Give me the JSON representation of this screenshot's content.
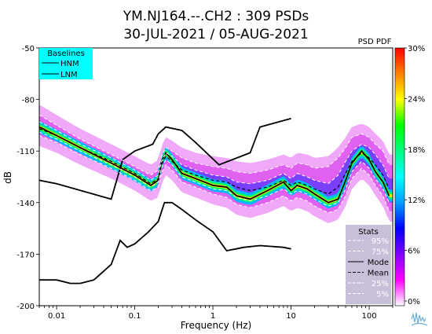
{
  "chart_data": {
    "type": "line",
    "title": "YM.NJ164.--.CH2 : 309 PSDs",
    "subtitle": "30-JUL-2021 / 05-AUG-2021",
    "xlabel": "Frequency (Hz)",
    "ylabel": "dB",
    "x_scale": "log",
    "xlim": [
      0.006,
      200
    ],
    "ylim": [
      -200,
      -50
    ],
    "x_ticks": [
      {
        "value": 0.01,
        "label": "0.01"
      },
      {
        "value": 0.1,
        "label": "0.1"
      },
      {
        "value": 1,
        "label": "1"
      },
      {
        "value": 10,
        "label": "10"
      },
      {
        "value": 100,
        "label": "100"
      }
    ],
    "y_ticks": [
      {
        "value": -50,
        "label": "-50"
      },
      {
        "value": -80,
        "label": "-80"
      },
      {
        "value": -110,
        "label": "-110"
      },
      {
        "value": -140,
        "label": "-140"
      },
      {
        "value": -170,
        "label": "-170"
      },
      {
        "value": -200,
        "label": "-200"
      }
    ],
    "grid": false,
    "baselines_legend": {
      "title": "Baselines",
      "position": "top-left",
      "items": [
        "HNM",
        "LNM"
      ],
      "background": "#00ffff"
    },
    "stats_legend": {
      "title": "Stats",
      "position": "bottom-right",
      "background": "#c8c0d8",
      "items": [
        {
          "label": "95%",
          "style": "dashed-white"
        },
        {
          "label": "75%",
          "style": "dashed-white"
        },
        {
          "label": "Mode",
          "style": "solid-black"
        },
        {
          "label": "Mean",
          "style": "dashed-black"
        },
        {
          "label": "25%",
          "style": "dashed-white"
        },
        {
          "label": "5%",
          "style": "dashed-white"
        }
      ]
    },
    "colorbar": {
      "title": "PSD PDF",
      "ticks": [
        "0%",
        "6%",
        "12%",
        "18%",
        "24%",
        "30%"
      ],
      "stops": [
        "#ffffff",
        "#ff00ff",
        "#8000ff",
        "#0000ff",
        "#00a0ff",
        "#00ffff",
        "#00ff80",
        "#00ff00",
        "#ffff00",
        "#ff8000",
        "#ff0000"
      ]
    },
    "series": [
      {
        "name": "HNM",
        "style": "solid-black",
        "points": [
          [
            0.006,
            -127
          ],
          [
            0.01,
            -129
          ],
          [
            0.05,
            -138
          ],
          [
            0.07,
            -115
          ],
          [
            0.1,
            -110
          ],
          [
            0.17,
            -106
          ],
          [
            0.2,
            -100
          ],
          [
            0.25,
            -96
          ],
          [
            0.4,
            -98
          ],
          [
            0.6,
            -105
          ],
          [
            1.2,
            -118
          ],
          [
            3,
            -111
          ],
          [
            4,
            -96
          ],
          [
            10,
            -91
          ]
        ]
      },
      {
        "name": "LNM",
        "style": "solid-black",
        "points": [
          [
            0.006,
            -185
          ],
          [
            0.01,
            -185
          ],
          [
            0.015,
            -187
          ],
          [
            0.02,
            -187
          ],
          [
            0.03,
            -185
          ],
          [
            0.05,
            -176
          ],
          [
            0.065,
            -162
          ],
          [
            0.08,
            -166
          ],
          [
            0.1,
            -164
          ],
          [
            0.15,
            -157
          ],
          [
            0.2,
            -151
          ],
          [
            0.24,
            -140
          ],
          [
            0.3,
            -140
          ],
          [
            0.4,
            -144
          ],
          [
            0.6,
            -150
          ],
          [
            1,
            -157
          ],
          [
            1.5,
            -168
          ],
          [
            2.5,
            -166
          ],
          [
            4,
            -165
          ],
          [
            8,
            -166
          ],
          [
            10,
            -167
          ]
        ]
      },
      {
        "name": "Mode",
        "style": "solid-black",
        "points": [
          [
            0.006,
            -96
          ],
          [
            0.01,
            -101
          ],
          [
            0.02,
            -108
          ],
          [
            0.05,
            -117
          ],
          [
            0.1,
            -124
          ],
          [
            0.16,
            -130
          ],
          [
            0.2,
            -127
          ],
          [
            0.22,
            -116
          ],
          [
            0.25,
            -111
          ],
          [
            0.3,
            -115
          ],
          [
            0.4,
            -123
          ],
          [
            0.6,
            -126
          ],
          [
            1,
            -130
          ],
          [
            1.5,
            -131
          ],
          [
            2,
            -136
          ],
          [
            3,
            -138
          ],
          [
            5,
            -133
          ],
          [
            8,
            -128
          ],
          [
            10,
            -133
          ],
          [
            12,
            -130
          ],
          [
            16,
            -132
          ],
          [
            20,
            -135
          ],
          [
            30,
            -140
          ],
          [
            40,
            -138
          ],
          [
            50,
            -127
          ],
          [
            60,
            -117
          ],
          [
            80,
            -110
          ],
          [
            100,
            -115
          ],
          [
            120,
            -122
          ],
          [
            150,
            -128
          ],
          [
            180,
            -136
          ]
        ]
      },
      {
        "name": "Mean",
        "style": "dashed-black",
        "points": [
          [
            0.006,
            -97
          ],
          [
            0.01,
            -101
          ],
          [
            0.02,
            -108
          ],
          [
            0.05,
            -116
          ],
          [
            0.1,
            -123
          ],
          [
            0.16,
            -129
          ],
          [
            0.2,
            -126
          ],
          [
            0.22,
            -118
          ],
          [
            0.25,
            -113
          ],
          [
            0.3,
            -116
          ],
          [
            0.4,
            -121
          ],
          [
            0.6,
            -124
          ],
          [
            1,
            -127
          ],
          [
            1.5,
            -128
          ],
          [
            2,
            -131
          ],
          [
            3,
            -133
          ],
          [
            5,
            -131
          ],
          [
            8,
            -127
          ],
          [
            10,
            -130
          ],
          [
            12,
            -128
          ],
          [
            16,
            -130
          ],
          [
            20,
            -132
          ],
          [
            30,
            -135
          ],
          [
            40,
            -131
          ],
          [
            50,
            -123
          ],
          [
            60,
            -116
          ],
          [
            80,
            -111
          ],
          [
            100,
            -114
          ],
          [
            120,
            -118
          ],
          [
            150,
            -124
          ],
          [
            180,
            -132
          ]
        ]
      },
      {
        "name": "95%",
        "style": "dashed-white",
        "points": [
          [
            0.006,
            -89
          ],
          [
            0.01,
            -95
          ],
          [
            0.02,
            -103
          ],
          [
            0.05,
            -112
          ],
          [
            0.1,
            -119
          ],
          [
            0.16,
            -124
          ],
          [
            0.2,
            -121
          ],
          [
            0.22,
            -113
          ],
          [
            0.25,
            -108
          ],
          [
            0.3,
            -110
          ],
          [
            0.4,
            -114
          ],
          [
            0.6,
            -117
          ],
          [
            1,
            -119
          ],
          [
            1.5,
            -120
          ],
          [
            2,
            -122
          ],
          [
            3,
            -123
          ],
          [
            5,
            -121
          ],
          [
            8,
            -118
          ],
          [
            10,
            -120
          ],
          [
            12,
            -117
          ],
          [
            16,
            -118
          ],
          [
            20,
            -120
          ],
          [
            30,
            -119
          ],
          [
            40,
            -114
          ],
          [
            50,
            -108
          ],
          [
            60,
            -102
          ],
          [
            80,
            -100
          ],
          [
            100,
            -102
          ],
          [
            120,
            -106
          ],
          [
            150,
            -110
          ],
          [
            180,
            -118
          ]
        ]
      },
      {
        "name": "75%",
        "style": "dashed-white",
        "points": [
          [
            0.006,
            -93
          ],
          [
            0.01,
            -98
          ],
          [
            0.02,
            -106
          ],
          [
            0.05,
            -114
          ],
          [
            0.1,
            -121
          ],
          [
            0.16,
            -127
          ],
          [
            0.2,
            -124
          ],
          [
            0.22,
            -116
          ],
          [
            0.25,
            -111
          ],
          [
            0.3,
            -113
          ],
          [
            0.4,
            -118
          ],
          [
            0.6,
            -121
          ],
          [
            1,
            -124
          ],
          [
            1.5,
            -125
          ],
          [
            2,
            -128
          ],
          [
            3,
            -129
          ],
          [
            5,
            -127
          ],
          [
            8,
            -123
          ],
          [
            10,
            -126
          ],
          [
            12,
            -123
          ],
          [
            16,
            -125
          ],
          [
            20,
            -127
          ],
          [
            30,
            -129
          ],
          [
            40,
            -124
          ],
          [
            50,
            -116
          ],
          [
            60,
            -110
          ],
          [
            80,
            -106
          ],
          [
            100,
            -108
          ],
          [
            120,
            -112
          ],
          [
            150,
            -118
          ],
          [
            180,
            -126
          ]
        ]
      },
      {
        "name": "25%",
        "style": "dashed-white",
        "points": [
          [
            0.006,
            -99
          ],
          [
            0.01,
            -103
          ],
          [
            0.02,
            -110
          ],
          [
            0.05,
            -118
          ],
          [
            0.1,
            -125
          ],
          [
            0.16,
            -131
          ],
          [
            0.2,
            -128
          ],
          [
            0.22,
            -120
          ],
          [
            0.25,
            -115
          ],
          [
            0.3,
            -118
          ],
          [
            0.4,
            -125
          ],
          [
            0.6,
            -128
          ],
          [
            1,
            -132
          ],
          [
            1.5,
            -133
          ],
          [
            2,
            -137
          ],
          [
            3,
            -139
          ],
          [
            5,
            -136
          ],
          [
            8,
            -132
          ],
          [
            10,
            -135
          ],
          [
            12,
            -133
          ],
          [
            16,
            -135
          ],
          [
            20,
            -138
          ],
          [
            30,
            -142
          ],
          [
            40,
            -140
          ],
          [
            50,
            -132
          ],
          [
            60,
            -122
          ],
          [
            80,
            -116
          ],
          [
            100,
            -120
          ],
          [
            120,
            -126
          ],
          [
            150,
            -132
          ],
          [
            180,
            -140
          ]
        ]
      },
      {
        "name": "5%",
        "style": "dashed-white",
        "points": [
          [
            0.006,
            -101
          ],
          [
            0.01,
            -105
          ],
          [
            0.02,
            -112
          ],
          [
            0.05,
            -120
          ],
          [
            0.1,
            -127
          ],
          [
            0.16,
            -133
          ],
          [
            0.2,
            -131
          ],
          [
            0.22,
            -123
          ],
          [
            0.25,
            -118
          ],
          [
            0.3,
            -121
          ],
          [
            0.4,
            -128
          ],
          [
            0.6,
            -131
          ],
          [
            1,
            -135
          ],
          [
            1.5,
            -137
          ],
          [
            2,
            -141
          ],
          [
            3,
            -143
          ],
          [
            5,
            -140
          ],
          [
            8,
            -136
          ],
          [
            10,
            -139
          ],
          [
            12,
            -137
          ],
          [
            16,
            -139
          ],
          [
            20,
            -142
          ],
          [
            30,
            -146
          ],
          [
            40,
            -144
          ],
          [
            50,
            -136
          ],
          [
            60,
            -126
          ],
          [
            80,
            -120
          ],
          [
            100,
            -124
          ],
          [
            120,
            -130
          ],
          [
            150,
            -136
          ],
          [
            180,
            -145
          ]
        ]
      }
    ]
  }
}
